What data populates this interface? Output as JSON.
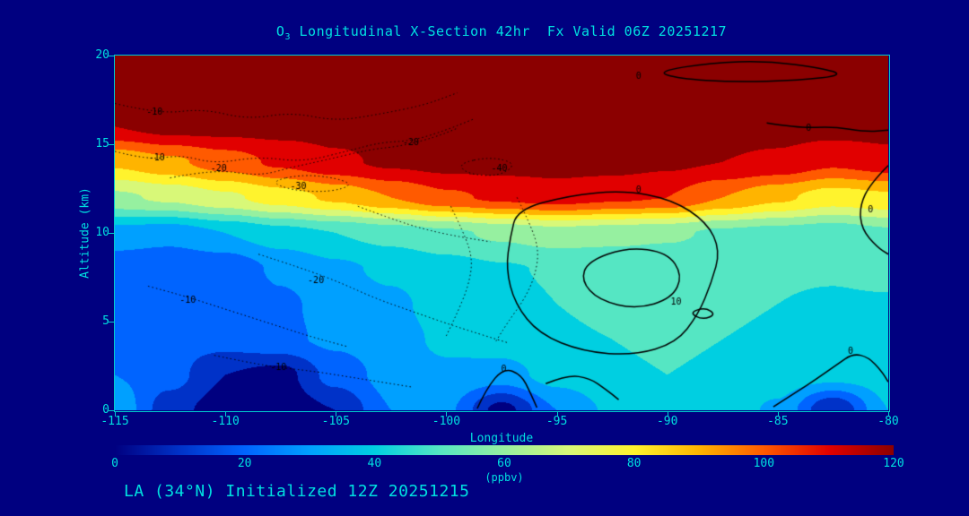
{
  "page": {
    "background": "#000080",
    "text_color": "#00E0E0",
    "footer": "LA (34°N) Initialized 12Z 20251215"
  },
  "chart_data": {
    "type": "heatmap",
    "title": "O3 Longitudinal X-Section 42hr  Fx Valid 06Z 20251217",
    "title_prefix": "O",
    "title_sub": "3",
    "title_rest": " Longitudinal X-Section 42hr  Fx Valid 06Z 20251217",
    "xlabel": "Longitude",
    "ylabel": "Altitude (km)",
    "x_range": [
      -115,
      -80
    ],
    "y_range": [
      0,
      20
    ],
    "x_ticks": [
      "-115",
      "-110",
      "-105",
      "-100",
      "-95",
      "-90",
      "-85",
      "-80"
    ],
    "y_ticks": [
      "0",
      "5",
      "10",
      "15",
      "20"
    ],
    "grid_on": false,
    "colorbar": {
      "min": 0,
      "max": 120,
      "band_size": 10,
      "ticks": [
        "0",
        "20",
        "40",
        "60",
        "80",
        "100",
        "120"
      ],
      "label": "(ppbv)",
      "band_colors": [
        "#000080",
        "#0032C8",
        "#0064FF",
        "#00A0FF",
        "#00CFE1",
        "#55E6C3",
        "#96F0A0",
        "#D8F878",
        "#FFF32D",
        "#FFB400",
        "#FF5A00",
        "#E10000",
        "#8B0000"
      ]
    },
    "grid": {
      "lons": [
        -115,
        -112.5,
        -110,
        -107.5,
        -105,
        -102.5,
        -100,
        -97.5,
        -95,
        -92.5,
        -90,
        -87.5,
        -85,
        -82.5,
        -80
      ],
      "alts": [
        0,
        2,
        4,
        6,
        8,
        10,
        12,
        14,
        16,
        18,
        20
      ],
      "values": [
        [
          38,
          14,
          4,
          3,
          10,
          30,
          32,
          6,
          30,
          42,
          45,
          46,
          38,
          10,
          40
        ],
        [
          30,
          24,
          10,
          6,
          24,
          34,
          38,
          36,
          44,
          48,
          50,
          48,
          46,
          44,
          45
        ],
        [
          26,
          24,
          24,
          28,
          32,
          36,
          42,
          45,
          48,
          50,
          52,
          50,
          48,
          47,
          47
        ],
        [
          23,
          21,
          20,
          28,
          34,
          38,
          44,
          47,
          50,
          53,
          55,
          52,
          50,
          49,
          49
        ],
        [
          24,
          22,
          23,
          32,
          38,
          42,
          46,
          49,
          51,
          52,
          52,
          51,
          51,
          51,
          53
        ],
        [
          36,
          34,
          40,
          46,
          50,
          54,
          58,
          62,
          66,
          64,
          62,
          58,
          56,
          54,
          58
        ],
        [
          68,
          72,
          78,
          85,
          92,
          100,
          108,
          112,
          115,
          112,
          110,
          100,
          92,
          85,
          88
        ],
        [
          92,
          98,
          105,
          112,
          118,
          122,
          124,
          124,
          124,
          124,
          122,
          120,
          118,
          112,
          116
        ],
        [
          120,
          124,
          124,
          124,
          124,
          124,
          124,
          124,
          124,
          124,
          124,
          124,
          124,
          124,
          124
        ],
        [
          124,
          124,
          124,
          124,
          124,
          124,
          124,
          124,
          124,
          124,
          124,
          124,
          124,
          124,
          124
        ],
        [
          124,
          124,
          124,
          124,
          124,
          124,
          124,
          124,
          124,
          124,
          124,
          124,
          124,
          124,
          124
        ]
      ]
    },
    "overlay_contours": [
      {
        "label": "-10",
        "style": "dotted",
        "closed": false,
        "points": [
          [
            -115,
            17.3
          ],
          [
            -113,
            16.7
          ],
          [
            -111,
            17.0
          ],
          [
            -109,
            16.4
          ],
          [
            -107,
            16.8
          ],
          [
            -105,
            16.3
          ],
          [
            -103,
            16.7
          ],
          [
            -101,
            17.2
          ],
          [
            -99.5,
            17.9
          ]
        ],
        "labels": [
          [
            -113.2,
            16.8
          ]
        ]
      },
      {
        "label": "-10",
        "style": "dotted",
        "closed": false,
        "points": [
          [
            -115,
            14.6
          ],
          [
            -113.5,
            14.1
          ],
          [
            -112,
            14.4
          ],
          [
            -110.5,
            13.9
          ],
          [
            -108.5,
            14.3
          ],
          [
            -106.5,
            14.0
          ],
          [
            -104.5,
            14.6
          ],
          [
            -103,
            15.1
          ],
          [
            -101.5,
            15.2
          ],
          [
            -100,
            15.8
          ],
          [
            -98.8,
            16.4
          ]
        ],
        "labels": [
          [
            -113.1,
            14.2
          ]
        ]
      },
      {
        "label": "-20",
        "style": "dotted",
        "closed": false,
        "points": [
          [
            -112.5,
            13.1
          ],
          [
            -110.5,
            13.6
          ],
          [
            -108.5,
            13.2
          ],
          [
            -107,
            13.7
          ],
          [
            -105.5,
            14.1
          ],
          [
            -103.5,
            14.7
          ],
          [
            -102,
            14.9
          ],
          [
            -100.5,
            15.4
          ],
          [
            -99.5,
            15.9
          ]
        ],
        "labels": [
          [
            -110.3,
            13.6
          ],
          [
            -101.6,
            15.1
          ]
        ]
      },
      {
        "label": "-30",
        "style": "dotted",
        "closed": true,
        "points": [
          [
            -108,
            12.9
          ],
          [
            -106.5,
            13.3
          ],
          [
            -105,
            13.1
          ],
          [
            -104.2,
            12.7
          ],
          [
            -105.3,
            12.3
          ],
          [
            -107,
            12.4
          ]
        ],
        "labels": [
          [
            -106.7,
            12.6
          ]
        ]
      },
      {
        "label": "-40",
        "style": "dotted",
        "closed": true,
        "points": [
          [
            -99.5,
            13.9
          ],
          [
            -98,
            14.3
          ],
          [
            -96.8,
            13.9
          ],
          [
            -97.6,
            13.2
          ],
          [
            -99,
            13.3
          ]
        ],
        "labels": [
          [
            -97.6,
            13.6
          ]
        ]
      },
      {
        "label": "-20",
        "style": "dotted",
        "closed": false,
        "points": [
          [
            -108.5,
            8.8
          ],
          [
            -106.5,
            8.0
          ],
          [
            -104.8,
            7.2
          ],
          [
            -103.2,
            6.3
          ],
          [
            -101.6,
            5.6
          ],
          [
            -100,
            4.9
          ],
          [
            -98.5,
            4.3
          ],
          [
            -97.2,
            3.8
          ]
        ],
        "labels": [
          [
            -105.9,
            7.3
          ]
        ]
      },
      {
        "label": "-10",
        "style": "dotted",
        "closed": false,
        "points": [
          [
            -113.5,
            7.0
          ],
          [
            -112,
            6.5
          ],
          [
            -110.5,
            5.9
          ],
          [
            -109,
            5.3
          ],
          [
            -107.5,
            4.7
          ],
          [
            -106,
            4.1
          ],
          [
            -104.5,
            3.6
          ]
        ],
        "labels": [
          [
            -111.7,
            6.2
          ]
        ]
      },
      {
        "label": "-10",
        "style": "dotted",
        "closed": false,
        "points": [
          [
            -110.5,
            3.1
          ],
          [
            -109,
            2.7
          ],
          [
            -107.5,
            2.4
          ],
          [
            -106,
            2.2
          ],
          [
            -104.5,
            1.9
          ],
          [
            -103,
            1.6
          ],
          [
            -101.5,
            1.3
          ]
        ],
        "labels": [
          [
            -107.6,
            2.4
          ]
        ]
      },
      {
        "label": "",
        "style": "dotted",
        "closed": false,
        "points": [
          [
            -99.8,
            11.5
          ],
          [
            -99.2,
            10.0
          ],
          [
            -98.8,
            8.5
          ],
          [
            -99.0,
            7.0
          ],
          [
            -99.5,
            5.5
          ],
          [
            -100,
            4.2
          ]
        ],
        "labels": []
      },
      {
        "label": "",
        "style": "dotted",
        "closed": false,
        "points": [
          [
            -96.8,
            12.0
          ],
          [
            -96.2,
            10.5
          ],
          [
            -95.8,
            9.0
          ],
          [
            -96.0,
            7.5
          ],
          [
            -96.5,
            6.2
          ],
          [
            -97.2,
            5.0
          ],
          [
            -97.8,
            3.8
          ]
        ],
        "labels": []
      },
      {
        "label": "",
        "style": "dotted",
        "closed": false,
        "points": [
          [
            -104,
            11.5
          ],
          [
            -102.5,
            10.8
          ],
          [
            -101,
            10.2
          ],
          [
            -99.5,
            9.8
          ],
          [
            -98,
            9.5
          ]
        ],
        "labels": []
      },
      {
        "label": "0",
        "style": "solid",
        "closed": true,
        "points": [
          [
            -96.8,
            11.3
          ],
          [
            -94.5,
            12.1
          ],
          [
            -92,
            12.4
          ],
          [
            -89.8,
            11.9
          ],
          [
            -88.2,
            10.6
          ],
          [
            -87.6,
            9.0
          ],
          [
            -88.0,
            7.2
          ],
          [
            -88.6,
            5.4
          ],
          [
            -89.6,
            3.8
          ],
          [
            -91.5,
            3.1
          ],
          [
            -93.8,
            3.3
          ],
          [
            -95.8,
            4.3
          ],
          [
            -96.9,
            6.0
          ],
          [
            -97.3,
            8.0
          ],
          [
            -97.1,
            9.8
          ]
        ],
        "labels": [
          [
            -91.3,
            12.4
          ]
        ]
      },
      {
        "label": "10",
        "style": "solid",
        "closed": true,
        "points": [
          [
            -93.6,
            8.4
          ],
          [
            -91.8,
            9.2
          ],
          [
            -90.0,
            8.9
          ],
          [
            -89.3,
            7.6
          ],
          [
            -89.8,
            6.3
          ],
          [
            -91.4,
            5.7
          ],
          [
            -93.1,
            6.2
          ],
          [
            -93.9,
            7.3
          ]
        ],
        "labels": [
          [
            -89.6,
            6.1
          ]
        ]
      },
      {
        "label": "",
        "style": "solid",
        "closed": true,
        "points": [
          [
            -89.0,
            5.5
          ],
          [
            -88.3,
            5.8
          ],
          [
            -87.8,
            5.4
          ],
          [
            -88.4,
            5.1
          ]
        ],
        "labels": []
      },
      {
        "label": "0",
        "style": "solid",
        "closed": true,
        "points": [
          [
            -90.5,
            19.1
          ],
          [
            -88,
            19.6
          ],
          [
            -85.5,
            19.7
          ],
          [
            -83,
            19.3
          ],
          [
            -82,
            18.9
          ],
          [
            -84,
            18.6
          ],
          [
            -87,
            18.5
          ],
          [
            -89.5,
            18.7
          ]
        ],
        "labels": [
          [
            -91.3,
            18.8
          ]
        ]
      },
      {
        "label": "0",
        "style": "solid",
        "closed": false,
        "points": [
          [
            -85.5,
            16.2
          ],
          [
            -84,
            15.9
          ],
          [
            -82.5,
            16.0
          ],
          [
            -81,
            15.7
          ],
          [
            -80,
            15.8
          ]
        ],
        "labels": [
          [
            -83.6,
            15.9
          ]
        ]
      },
      {
        "label": "0",
        "style": "solid",
        "closed": false,
        "points": [
          [
            -80,
            13.8
          ],
          [
            -80.8,
            12.8
          ],
          [
            -81.3,
            11.5
          ],
          [
            -81.2,
            10.2
          ],
          [
            -80.5,
            9.2
          ],
          [
            -80,
            8.8
          ]
        ],
        "labels": [
          [
            -80.8,
            11.3
          ]
        ]
      },
      {
        "label": "0",
        "style": "solid",
        "closed": false,
        "points": [
          [
            -98.6,
            0.1
          ],
          [
            -98.2,
            1.2
          ],
          [
            -97.4,
            2.4
          ],
          [
            -96.6,
            2.0
          ],
          [
            -96.2,
            1.0
          ],
          [
            -95.9,
            0.15
          ]
        ],
        "labels": [
          [
            -97.4,
            2.3
          ]
        ]
      },
      {
        "label": "",
        "style": "solid",
        "closed": false,
        "points": [
          [
            -95.5,
            1.5
          ],
          [
            -94.5,
            2.0
          ],
          [
            -93.5,
            1.8
          ],
          [
            -92.8,
            1.2
          ],
          [
            -92.2,
            0.6
          ]
        ],
        "labels": []
      },
      {
        "label": "0",
        "style": "solid",
        "closed": false,
        "points": [
          [
            -85.2,
            0.2
          ],
          [
            -84.2,
            1.0
          ],
          [
            -83.2,
            1.8
          ],
          [
            -82.3,
            2.6
          ],
          [
            -81.6,
            3.2
          ],
          [
            -80.9,
            3.0
          ],
          [
            -80.3,
            2.2
          ],
          [
            -80,
            1.6
          ]
        ],
        "labels": [
          [
            -81.7,
            3.3
          ]
        ]
      }
    ]
  }
}
